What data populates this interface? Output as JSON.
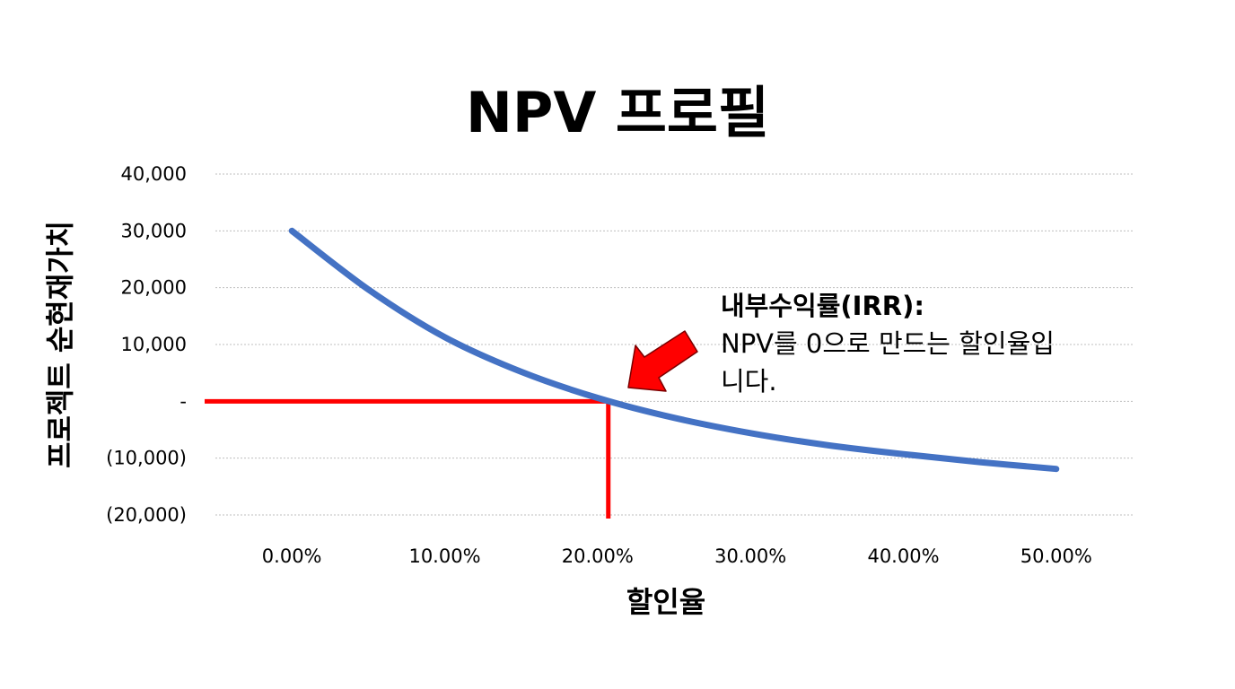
{
  "chart_data": {
    "type": "line",
    "title": "NPV 프로필",
    "xlabel": "할인율",
    "ylabel": "프로젝트 순현재가치",
    "x_tick_labels": [
      "0.00%",
      "10.00%",
      "20.00%",
      "30.00%",
      "40.00%",
      "50.00%"
    ],
    "y_tick_labels": [
      "40,000",
      "30,000",
      "20,000",
      "10,000",
      "-",
      "(10,000)",
      "(20,000)"
    ],
    "x_ticks": [
      0,
      10,
      20,
      30,
      40,
      50
    ],
    "y_ticks": [
      40000,
      30000,
      20000,
      10000,
      0,
      -10000,
      -20000
    ],
    "xlim": [
      -5,
      55
    ],
    "ylim": [
      -20000,
      40000
    ],
    "grid": true,
    "series": [
      {
        "color": "#4472C4",
        "x": [
          0,
          5,
          10,
          15,
          20,
          25,
          30,
          35,
          40,
          45,
          50
        ],
        "y": [
          30000,
          19700,
          11300,
          5200,
          600,
          -2900,
          -5600,
          -7700,
          -9300,
          -10700,
          -11900
        ]
      }
    ],
    "irr": 20.7,
    "marker_color": "#FF0000",
    "annotation": {
      "bold_text": "내부수익률(IRR):",
      "line1": "NPV를 0으로 만드는 할인율입",
      "line2": "니다."
    }
  }
}
